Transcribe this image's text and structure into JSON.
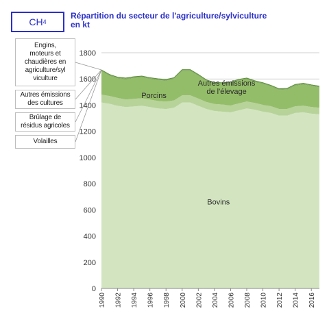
{
  "header": {
    "box_label": "CH",
    "box_sub": "4",
    "title_line1": "Répartition du secteur de l'agriculture/sylviculture",
    "title_line2": "en kt"
  },
  "legend_boxes": [
    {
      "lines": [
        "Engins,",
        "moteurs et",
        "chaudières en",
        "agriculture/syl",
        "viculture"
      ]
    },
    {
      "lines": [
        "Autres émissions",
        "des cultures"
      ]
    },
    {
      "lines": [
        "Brûlage de",
        "résidus agricoles"
      ]
    },
    {
      "lines": [
        "Volailles"
      ]
    }
  ],
  "colors": {
    "bovins": "#d3e5c0",
    "porcins": "#b7d39a",
    "autres_elevage": "#94bd69",
    "top": "#6a9a45",
    "axis": "#888888",
    "grid": "#bfbfbf",
    "accent": "#2a2fc7"
  },
  "chart_data": {
    "type": "area",
    "stacked": true,
    "title": "Répartition du secteur de l'agriculture/sylviculture en kt",
    "x": [
      1990,
      1991,
      1992,
      1993,
      1994,
      1995,
      1996,
      1997,
      1998,
      1999,
      2000,
      2001,
      2002,
      2003,
      2004,
      2005,
      2006,
      2007,
      2008,
      2009,
      2010,
      2011,
      2012,
      2013,
      2014,
      2015,
      2016,
      2017
    ],
    "ylim": [
      0,
      1800
    ],
    "yticks": [
      0,
      200,
      400,
      600,
      800,
      1000,
      1200,
      1400,
      1600,
      1800
    ],
    "xticks": [
      1990,
      1992,
      1994,
      1996,
      1998,
      2000,
      2002,
      2004,
      2006,
      2008,
      2010,
      2012,
      2014,
      2016
    ],
    "grid": "horizontal",
    "series": [
      {
        "name": "Bovins",
        "values": [
          1420,
          1410,
          1395,
          1385,
          1390,
          1395,
          1385,
          1375,
          1370,
          1380,
          1420,
          1420,
          1395,
          1370,
          1355,
          1350,
          1345,
          1360,
          1375,
          1365,
          1350,
          1340,
          1320,
          1320,
          1340,
          1345,
          1335,
          1330
        ]
      },
      {
        "name": "Porcins",
        "values": [
          60,
          60,
          60,
          58,
          58,
          58,
          58,
          57,
          57,
          56,
          55,
          55,
          55,
          54,
          54,
          54,
          53,
          53,
          53,
          52,
          52,
          52,
          51,
          51,
          51,
          51,
          51,
          50
        ]
      },
      {
        "name": "Autres émissions de l'élevage",
        "values": [
          180,
          155,
          150,
          155,
          160,
          160,
          158,
          160,
          160,
          165,
          187,
          187,
          175,
          160,
          155,
          158,
          170,
          175,
          170,
          160,
          160,
          150,
          145,
          148,
          158,
          162,
          160,
          156
        ]
      },
      {
        "name": "Volailles",
        "values": [
          3,
          3,
          3,
          3,
          3,
          3,
          3,
          3,
          3,
          3,
          3,
          3,
          3,
          3,
          3,
          3,
          3,
          3,
          3,
          3,
          3,
          3,
          3,
          3,
          3,
          3,
          3,
          3
        ]
      },
      {
        "name": "Brûlage de résidus agricoles",
        "values": [
          1,
          1,
          1,
          1,
          1,
          1,
          1,
          1,
          1,
          1,
          1,
          1,
          1,
          1,
          1,
          1,
          1,
          1,
          1,
          1,
          1,
          1,
          1,
          1,
          1,
          1,
          1,
          1
        ]
      },
      {
        "name": "Autres émissions des cultures",
        "values": [
          2,
          2,
          2,
          2,
          2,
          2,
          2,
          2,
          2,
          2,
          2,
          2,
          2,
          2,
          2,
          2,
          2,
          2,
          2,
          2,
          2,
          2,
          2,
          2,
          2,
          2,
          2,
          2
        ]
      },
      {
        "name": "Engins, moteurs et chaudières en agriculture/sylviculture",
        "values": [
          3,
          3,
          3,
          3,
          3,
          3,
          3,
          3,
          3,
          3,
          3,
          3,
          3,
          3,
          3,
          3,
          3,
          3,
          3,
          3,
          3,
          3,
          3,
          3,
          3,
          3,
          3,
          3
        ]
      }
    ],
    "area_labels": [
      {
        "text_lines": [
          "Porcins"
        ],
        "series": "Porcins",
        "x": 1996.5,
        "y": 1455
      },
      {
        "text_lines": [
          "Autres émissions",
          "de l'élevage"
        ],
        "series": "Autres émissions de l'élevage",
        "x": 2005.5,
        "y": 1550
      },
      {
        "text_lines": [
          "Bovins"
        ],
        "series": "Bovins",
        "x": 2004.5,
        "y": 640
      }
    ]
  }
}
